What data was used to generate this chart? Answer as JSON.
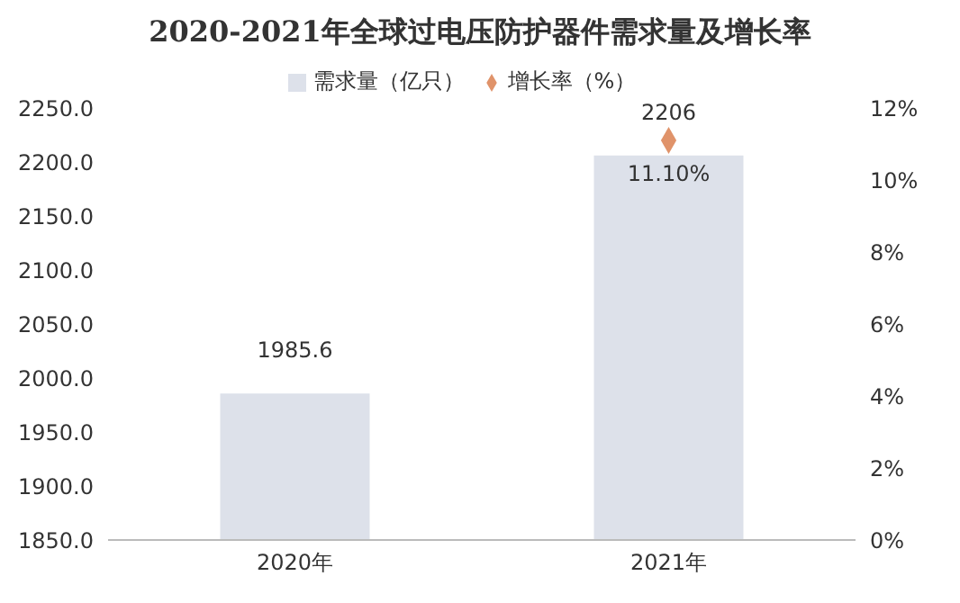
{
  "chart_data": {
    "type": "bar",
    "title": "2020-2021年全球过电压防护器件需求量及增长率",
    "categories": [
      "2020年",
      "2021年"
    ],
    "series": [
      {
        "name": "需求量（亿只）",
        "color": "#dde1ea",
        "values": [
          1985.6,
          2206
        ],
        "value_labels": [
          "1985.6",
          "2206"
        ]
      },
      {
        "name": "增长率（%）",
        "type": "scatter",
        "axis": "y2",
        "marker": "diamond",
        "color": "#e0936a",
        "values": [
          null,
          11.1
        ],
        "value_labels": [
          null,
          "11.10%"
        ]
      }
    ],
    "ylim": [
      1850,
      2250
    ],
    "yticks": [
      {
        "value": 1850,
        "label": "1850.0"
      },
      {
        "value": 1900,
        "label": "1900.0"
      },
      {
        "value": 1950,
        "label": "1950.0"
      },
      {
        "value": 2000,
        "label": "2000.0"
      },
      {
        "value": 2050,
        "label": "2050.0"
      },
      {
        "value": 2100,
        "label": "2100.0"
      },
      {
        "value": 2150,
        "label": "2150.0"
      },
      {
        "value": 2200,
        "label": "2200.0"
      },
      {
        "value": 2250,
        "label": "2250.0"
      }
    ],
    "y2lim": [
      0,
      12
    ],
    "y2ticks": [
      {
        "value": 0,
        "label": "0%"
      },
      {
        "value": 2,
        "label": "2%"
      },
      {
        "value": 4,
        "label": "4%"
      },
      {
        "value": 6,
        "label": "6%"
      },
      {
        "value": 8,
        "label": "8%"
      },
      {
        "value": 10,
        "label": "10%"
      },
      {
        "value": 12,
        "label": "12%"
      }
    ],
    "legend": "top"
  }
}
